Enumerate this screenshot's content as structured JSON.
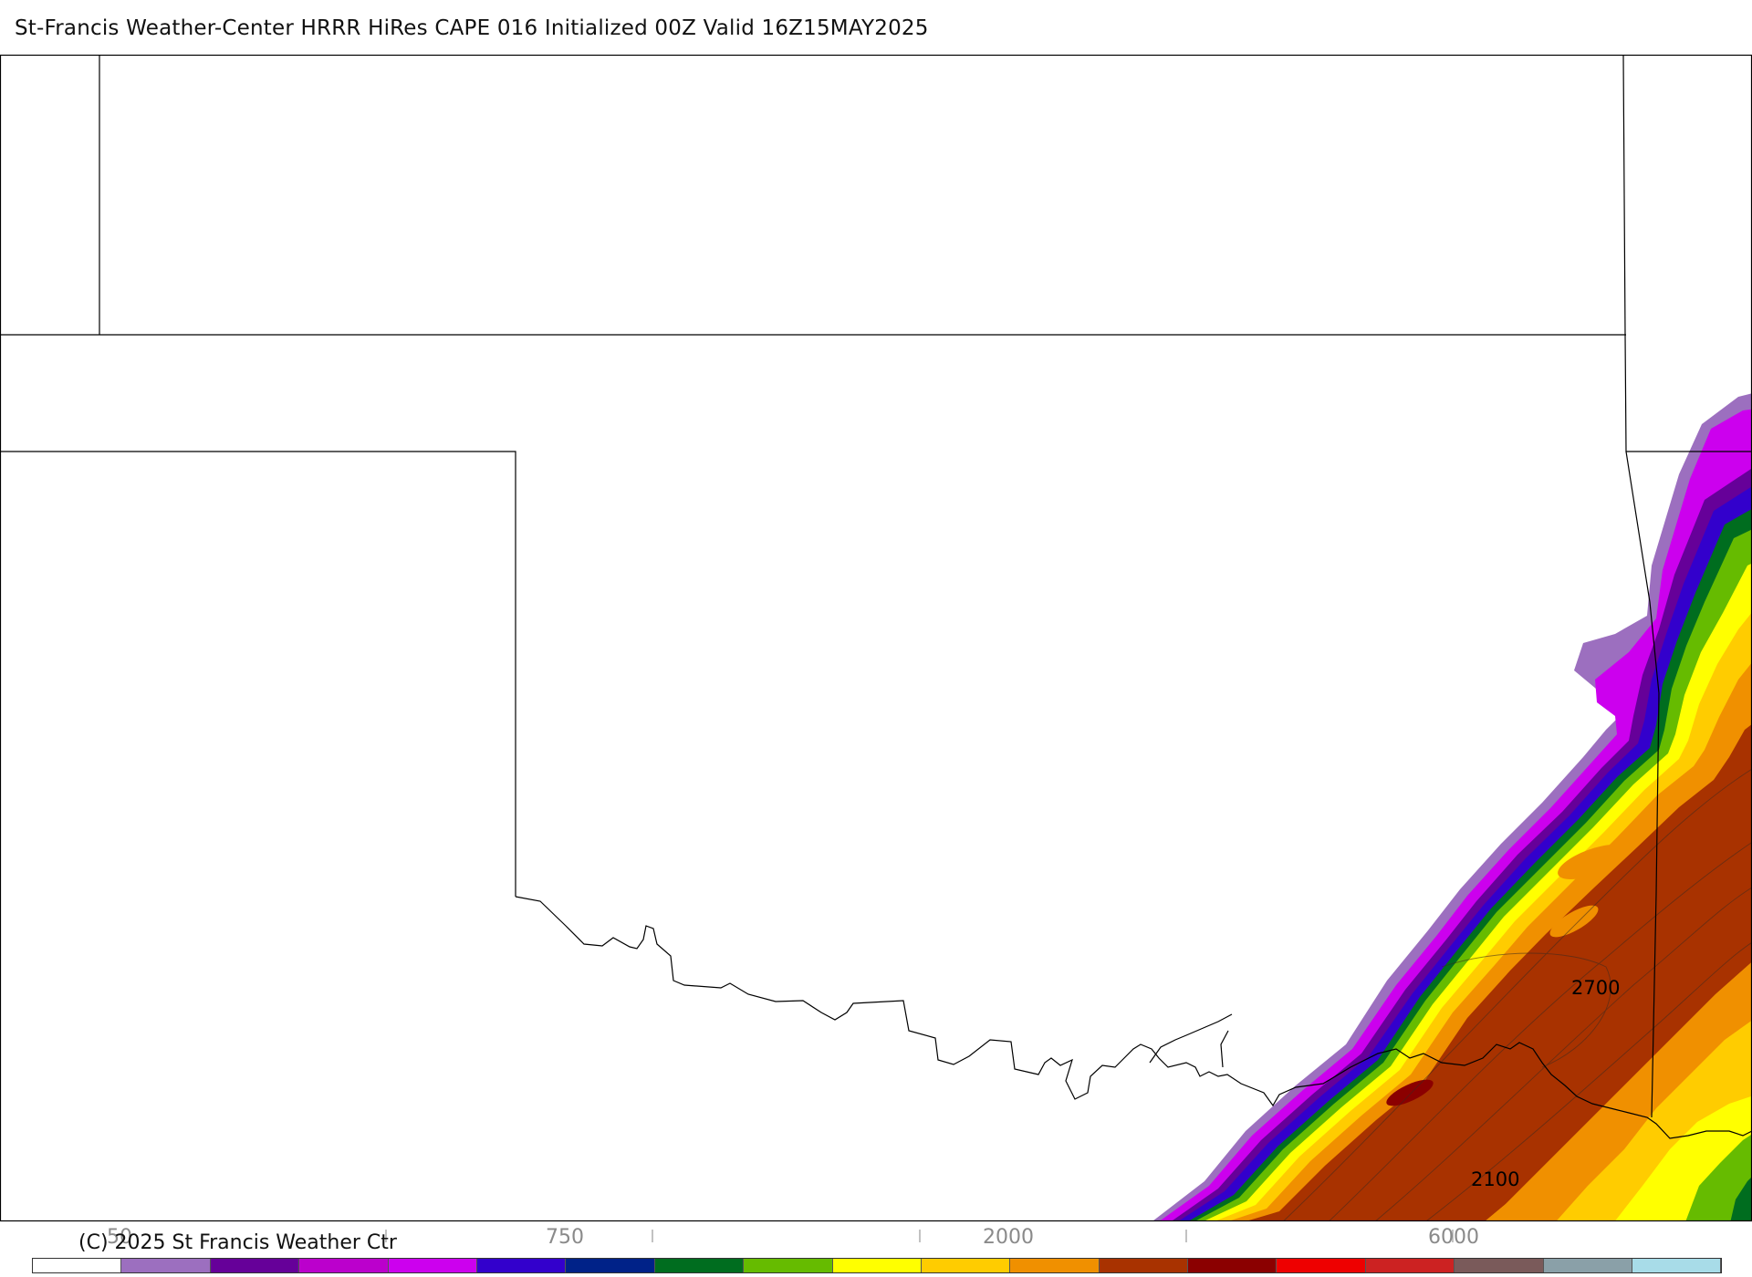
{
  "header": {
    "title": "St-Francis Weather-Center HRRR HiRes CAPE  016 Initialized  00Z Valid 16Z15MAY2025"
  },
  "footer": {
    "copyright": "(C) 2025 St Francis Weather Ctr"
  },
  "map": {
    "contour_labels": [
      "2700",
      "2100"
    ]
  },
  "colorbar": {
    "colors": [
      "#ffffff",
      "#9c6fbf",
      "#660099",
      "#bb00cc",
      "#cc00ee",
      "#3300cc",
      "#002288",
      "#006d1f",
      "#66bb00",
      "#ffff00",
      "#ffcc00",
      "#f09000",
      "#a83200",
      "#8b0000",
      "#ee0000",
      "#cc2222",
      "#7a5a5a",
      "#8aa0a8",
      "#a8dce8"
    ],
    "tick_labels": [
      "50",
      "750",
      "2000",
      "6000"
    ]
  }
}
